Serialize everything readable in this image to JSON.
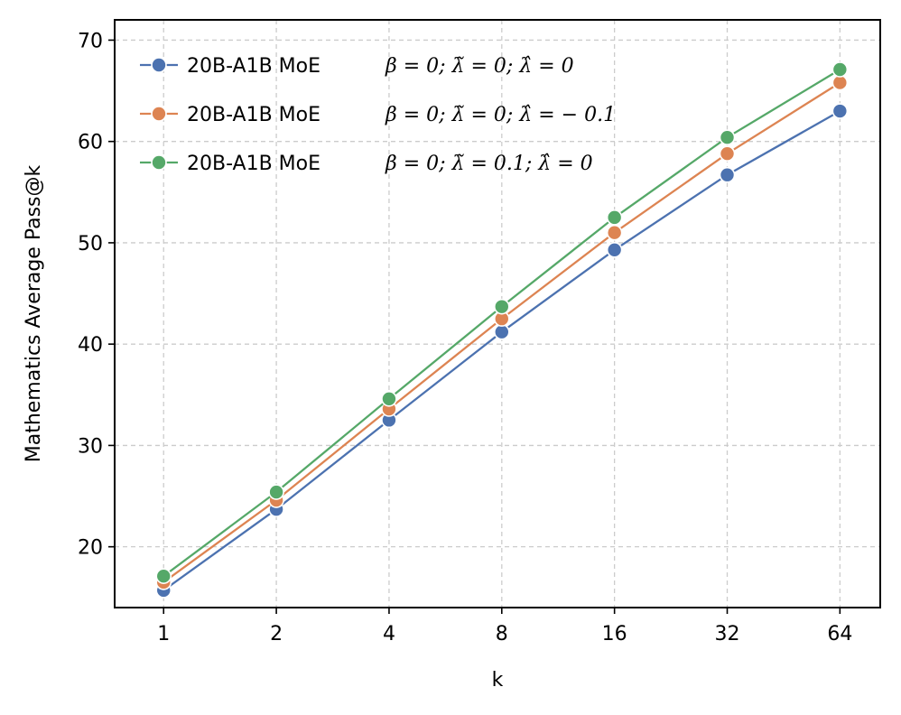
{
  "chart_data": {
    "type": "line",
    "title": "",
    "xlabel": "k",
    "ylabel": "Mathematics Average Pass@k",
    "x": [
      1,
      2,
      4,
      8,
      16,
      32,
      64
    ],
    "x_tick_labels": [
      "1",
      "2",
      "4",
      "8",
      "16",
      "32",
      "64"
    ],
    "x_scale": "log2",
    "xlim": [
      0.74,
      82
    ],
    "ylim": [
      14,
      72
    ],
    "y_ticks": [
      20,
      30,
      40,
      50,
      60,
      70
    ],
    "y_tick_labels": [
      "20",
      "30",
      "40",
      "50",
      "60",
      "70"
    ],
    "grid": true,
    "legend_position": "top-left",
    "series": [
      {
        "name": "20B-A1B MoE",
        "params": "β = 0;  λ̃ = 0;  λ̂ = 0",
        "color": "#4c72b0",
        "values": [
          15.7,
          23.7,
          32.5,
          41.2,
          49.3,
          56.7,
          63.0
        ]
      },
      {
        "name": "20B-A1B MoE",
        "params": "β = 0;  λ̃ = 0;  λ̂ = − 0.1",
        "color": "#dd8452",
        "values": [
          16.5,
          24.6,
          33.6,
          42.5,
          51.0,
          58.8,
          65.8
        ]
      },
      {
        "name": "20B-A1B MoE",
        "params": "β = 0;  λ̃ = 0.1;  λ̂ = 0",
        "color": "#55a868",
        "values": [
          17.1,
          25.4,
          34.6,
          43.7,
          52.5,
          60.4,
          67.1
        ]
      }
    ]
  }
}
